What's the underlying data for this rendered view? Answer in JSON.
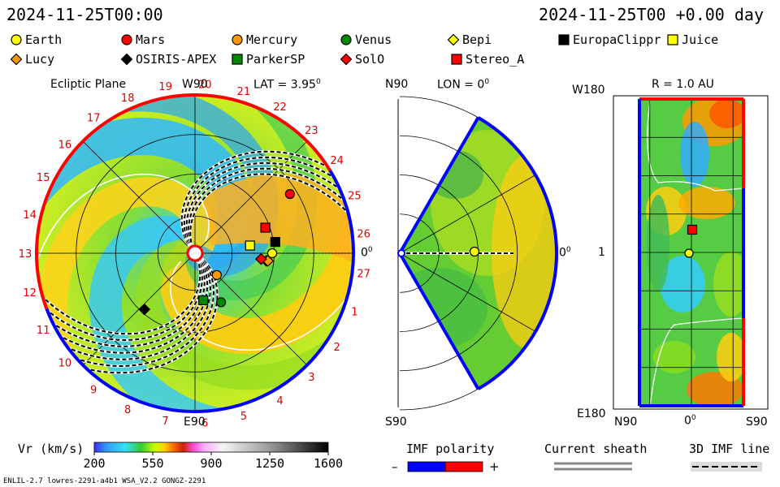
{
  "header": {
    "left_time": "2024-11-25T00:00",
    "right_time": "2024-11-25T00 +0.00 day"
  },
  "legend": [
    {
      "name": "Earth",
      "shape": "circle",
      "color": "#ffff00"
    },
    {
      "name": "Mars",
      "shape": "circle",
      "color": "#ff0000"
    },
    {
      "name": "Mercury",
      "shape": "circle",
      "color": "#ff9900"
    },
    {
      "name": "Venus",
      "shape": "circle",
      "color": "#008800"
    },
    {
      "name": "Bepi",
      "shape": "diamond",
      "color": "#ffff00"
    },
    {
      "name": "EuropaClippr",
      "shape": "square",
      "color": "#000000"
    },
    {
      "name": "Juice",
      "shape": "square",
      "color": "#ffff00"
    },
    {
      "name": "Lucy",
      "shape": "diamond",
      "color": "#ff9900"
    },
    {
      "name": "OSIRIS-APEX",
      "shape": "diamond",
      "color": "#000000"
    },
    {
      "name": "ParkerSP",
      "shape": "square",
      "color": "#008800"
    },
    {
      "name": "SolO",
      "shape": "diamond",
      "color": "#ff0000"
    },
    {
      "name": "Stereo_A",
      "shape": "square",
      "color": "#ff0000"
    }
  ],
  "panel_ecliptic": {
    "title": "Ecliptic Plane",
    "top_label": "W90",
    "lat_label": "LAT = 3.95",
    "deg_sup": "0",
    "bottom_label": "E90",
    "right_label": "0",
    "clock_labels": [
      "19",
      "20",
      "21",
      "22",
      "23",
      "24",
      "25",
      "26",
      "27",
      "1",
      "2",
      "3",
      "4",
      "5",
      "6",
      "7",
      "8",
      "9",
      "10",
      "11",
      "12",
      "13",
      "14",
      "15",
      "16",
      "17",
      "18"
    ]
  },
  "panel_meridional": {
    "top_label": "N90",
    "lon_label": "LON = 0",
    "deg_sup": "0",
    "bottom_label": "S90",
    "right_label": "0"
  },
  "panel_map": {
    "r_label": "R = 1.0 AU",
    "top_left": "W180",
    "mid_left": "1",
    "bottom_left": "E180",
    "x_left": "N90",
    "x_mid": "0",
    "x_right": "S90"
  },
  "colorbar": {
    "label": "Vr (km/s)",
    "ticks": [
      "200",
      "550",
      "900",
      "1250",
      "1600"
    ],
    "range": [
      200,
      1600
    ]
  },
  "imf_polarity": {
    "label": "IMF polarity",
    "minus": "–",
    "plus": "+",
    "colors": [
      "#0000ff",
      "#ff0000"
    ]
  },
  "current_sheath": {
    "label": "Current sheath"
  },
  "imf_line": {
    "label": "3D IMF line"
  },
  "footer": {
    "left": "ENLIL-2.7 lowres-2291-a4b1 WSA_V2.2 GONGZ-2291"
  },
  "chart_data": {
    "type": "heatmap",
    "quantity": "Vr (km/s)",
    "color_range": [
      200,
      1600
    ],
    "bodies_ecliptic": [
      {
        "name": "Earth",
        "r_au": 1.0,
        "angle_deg": 0
      },
      {
        "name": "Mars",
        "r_au": 1.45,
        "angle_deg": 32
      },
      {
        "name": "Mercury",
        "r_au": 0.4,
        "angle_deg": -45
      },
      {
        "name": "Venus",
        "r_au": 0.72,
        "angle_deg": -62
      },
      {
        "name": "Bepi",
        "r_au": 0.93,
        "angle_deg": -6
      },
      {
        "name": "EuropaClippr",
        "r_au": 1.05,
        "angle_deg": 8
      },
      {
        "name": "Juice",
        "r_au": 0.72,
        "angle_deg": 8
      },
      {
        "name": "Lucy",
        "r_au": 0.95,
        "angle_deg": -6
      },
      {
        "name": "OSIRIS-APEX",
        "r_au": 0.98,
        "angle_deg": -132
      },
      {
        "name": "ParkerSP",
        "r_au": 0.62,
        "angle_deg": -80
      },
      {
        "name": "SolO",
        "r_au": 0.86,
        "angle_deg": -5
      },
      {
        "name": "Stereo_A",
        "r_au": 0.97,
        "angle_deg": 20
      }
    ]
  }
}
